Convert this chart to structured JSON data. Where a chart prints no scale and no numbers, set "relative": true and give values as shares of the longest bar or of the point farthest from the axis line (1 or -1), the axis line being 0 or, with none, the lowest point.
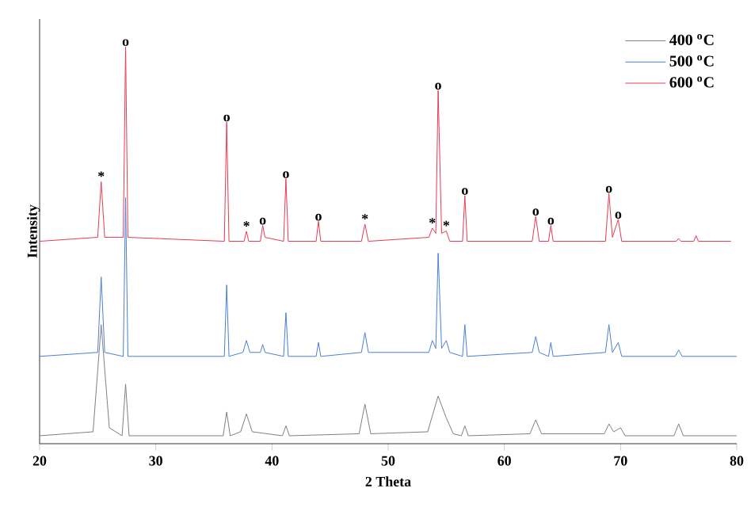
{
  "chart_data": {
    "type": "line",
    "relative": true,
    "xlabel": "2 Theta",
    "ylabel": "Intensity",
    "xlim": [
      20,
      80
    ],
    "xticks": [
      20,
      30,
      40,
      50,
      60,
      70,
      80
    ],
    "legend": "top right",
    "series": [
      {
        "name": "400 $^{o}$C",
        "color": "#7f7f7f",
        "x": [
          20,
          24.6,
          25.3,
          26.0,
          27.1,
          27.4,
          27.7,
          35.8,
          36.1,
          36.4,
          37.3,
          37.8,
          38.3,
          40.9,
          41.2,
          41.5,
          47.5,
          48.0,
          48.5,
          53.4,
          53.8,
          54.3,
          55.0,
          55.6,
          56.3,
          56.6,
          56.9,
          62.2,
          62.7,
          63.2,
          68.6,
          69.0,
          69.4,
          70.0,
          70.4,
          74.6,
          75.0,
          75.4,
          80
        ],
        "values": [
          0.02,
          0.03,
          0.3,
          0.04,
          0.02,
          0.15,
          0.02,
          0.02,
          0.08,
          0.02,
          0.03,
          0.075,
          0.03,
          0.02,
          0.045,
          0.02,
          0.025,
          0.1,
          0.025,
          0.03,
          0.07,
          0.12,
          0.065,
          0.025,
          0.02,
          0.045,
          0.02,
          0.025,
          0.06,
          0.025,
          0.025,
          0.05,
          0.03,
          0.04,
          0.02,
          0.02,
          0.05,
          0.02,
          0.02
        ]
      },
      {
        "name": "500 $^{o}$C",
        "color": "#4a7fd0",
        "x": [
          20,
          25.0,
          25.3,
          25.6,
          27.2,
          27.4,
          27.6,
          35.9,
          36.1,
          36.3,
          37.5,
          37.8,
          38.1,
          39.0,
          39.2,
          39.4,
          41.0,
          41.2,
          41.4,
          43.8,
          44.0,
          44.2,
          47.7,
          48.0,
          48.3,
          53.5,
          53.8,
          54.1,
          54.3,
          54.6,
          55.0,
          55.3,
          56.4,
          56.6,
          56.8,
          62.4,
          62.7,
          63.0,
          63.8,
          64.0,
          64.2,
          68.7,
          69.0,
          69.3,
          69.8,
          70.1,
          74.7,
          75.0,
          75.3,
          80
        ],
        "values": [
          0.22,
          0.23,
          0.42,
          0.23,
          0.22,
          0.62,
          0.22,
          0.22,
          0.4,
          0.22,
          0.23,
          0.26,
          0.23,
          0.23,
          0.25,
          0.23,
          0.22,
          0.33,
          0.22,
          0.22,
          0.255,
          0.22,
          0.23,
          0.28,
          0.23,
          0.23,
          0.26,
          0.24,
          0.48,
          0.24,
          0.26,
          0.23,
          0.22,
          0.3,
          0.22,
          0.23,
          0.27,
          0.23,
          0.22,
          0.255,
          0.22,
          0.23,
          0.3,
          0.23,
          0.255,
          0.22,
          0.22,
          0.236,
          0.22,
          0.22
        ]
      },
      {
        "name": "600 $^{o}$C",
        "color": "#e8384f",
        "x": [
          20,
          25.0,
          25.3,
          25.6,
          27.2,
          27.4,
          27.6,
          35.9,
          36.1,
          36.3,
          37.6,
          37.8,
          38.0,
          39.0,
          39.2,
          39.4,
          41.0,
          41.2,
          41.4,
          43.8,
          44.0,
          44.2,
          47.7,
          48.0,
          48.3,
          53.5,
          53.8,
          54.1,
          54.3,
          54.6,
          55.0,
          55.3,
          56.4,
          56.6,
          56.8,
          62.4,
          62.7,
          63.0,
          63.8,
          64.0,
          64.2,
          68.7,
          69.0,
          69.3,
          69.8,
          70.1,
          74.8,
          75.0,
          75.2,
          76.3,
          76.5,
          76.7,
          79.5
        ],
        "values": [
          0.51,
          0.52,
          0.66,
          0.52,
          0.52,
          1.0,
          0.52,
          0.51,
          0.81,
          0.51,
          0.51,
          0.535,
          0.51,
          0.51,
          0.55,
          0.52,
          0.51,
          0.667,
          0.51,
          0.51,
          0.56,
          0.51,
          0.51,
          0.553,
          0.51,
          0.52,
          0.543,
          0.53,
          0.89,
          0.53,
          0.536,
          0.51,
          0.51,
          0.625,
          0.51,
          0.51,
          0.573,
          0.51,
          0.51,
          0.55,
          0.51,
          0.51,
          0.63,
          0.52,
          0.565,
          0.51,
          0.51,
          0.517,
          0.51,
          0.51,
          0.524,
          0.51,
          0.51
        ]
      }
    ],
    "annotations": [
      {
        "text": "*",
        "x": 25.3,
        "y": 0.66
      },
      {
        "text": "o",
        "x": 27.4,
        "y": 1.0
      },
      {
        "text": "o",
        "x": 36.1,
        "y": 0.81
      },
      {
        "text": "*",
        "x": 37.8,
        "y": 0.535
      },
      {
        "text": "o",
        "x": 39.2,
        "y": 0.55
      },
      {
        "text": "o",
        "x": 41.2,
        "y": 0.667
      },
      {
        "text": "o",
        "x": 44.0,
        "y": 0.56
      },
      {
        "text": "*",
        "x": 48.0,
        "y": 0.553
      },
      {
        "text": "*",
        "x": 53.8,
        "y": 0.543
      },
      {
        "text": "o",
        "x": 54.3,
        "y": 0.89
      },
      {
        "text": "*",
        "x": 55.0,
        "y": 0.536
      },
      {
        "text": "o",
        "x": 56.6,
        "y": 0.625
      },
      {
        "text": "o",
        "x": 62.7,
        "y": 0.573
      },
      {
        "text": "o",
        "x": 64.0,
        "y": 0.55
      },
      {
        "text": "o",
        "x": 69.0,
        "y": 0.63
      },
      {
        "text": "o",
        "x": 69.8,
        "y": 0.565
      }
    ]
  }
}
